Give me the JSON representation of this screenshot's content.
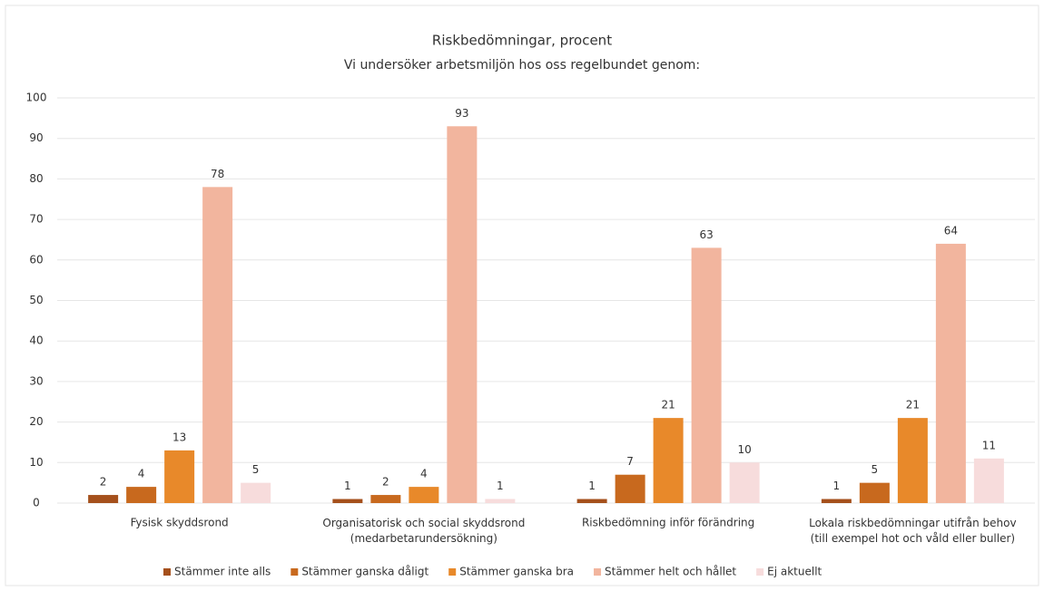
{
  "chart_data": {
    "type": "bar",
    "title": "Riskbedömningar, procent",
    "subtitle": "Vi undersöker arbetsmiljön hos oss regelbundet genom:",
    "categories": [
      "Fysisk skyddsrond",
      "Organisatorisk och social skyddsrond\n(medarbetarundersökning)",
      "Riskbedömning inför förändring",
      "Lokala riskbedömningar utifrån behov\n(till exempel hot och våld eller buller)"
    ],
    "series": [
      {
        "name": "Stämmer inte alls",
        "color": "#a5501c",
        "values": [
          2,
          1,
          1,
          1
        ]
      },
      {
        "name": "Stämmer ganska dåligt",
        "color": "#c8691e",
        "values": [
          4,
          2,
          7,
          5
        ]
      },
      {
        "name": "Stämmer ganska bra",
        "color": "#e8892a",
        "values": [
          13,
          4,
          21,
          21
        ]
      },
      {
        "name": "Stämmer helt och hållet",
        "color": "#f2b59e",
        "values": [
          78,
          93,
          63,
          64
        ]
      },
      {
        "name": "Ej aktuellt",
        "color": "#f7dcdc",
        "values": [
          5,
          1,
          10,
          11
        ]
      }
    ],
    "ylim": [
      0,
      100
    ],
    "yticks": [
      0,
      10,
      20,
      30,
      40,
      50,
      60,
      70,
      80,
      90,
      100
    ],
    "grid": true,
    "legend": "bottom"
  }
}
